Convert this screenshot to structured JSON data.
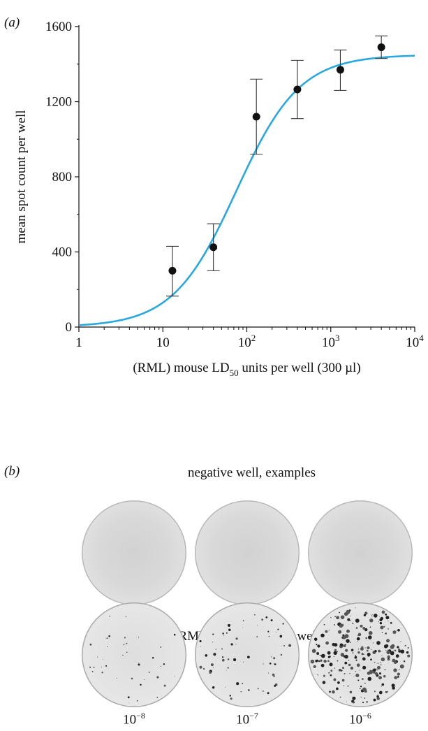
{
  "panel_a_label": "(a)",
  "panel_b_label": "(b)",
  "chart_data": {
    "type": "scatter",
    "xscale": "log",
    "xlim": [
      1,
      10000
    ],
    "ylim": [
      0,
      1600
    ],
    "xlabel": "(RML) mouse LD50 units per well (300 µl)",
    "ylabel": "mean spot count per well",
    "xticks": [
      1,
      10,
      100,
      1000,
      10000
    ],
    "xtick_labels": [
      "1",
      "10",
      "10^2",
      "10^3",
      "10^4"
    ],
    "yticks": [
      0,
      400,
      800,
      1200,
      1600
    ],
    "ytick_labels": [
      "0",
      "400",
      "800",
      "1200",
      "1600"
    ],
    "points": [
      {
        "x": 13,
        "y": 300,
        "err_low": 165,
        "err_high": 430
      },
      {
        "x": 40,
        "y": 425,
        "err_low": 300,
        "err_high": 550
      },
      {
        "x": 130,
        "y": 1120,
        "err_low": 920,
        "err_high": 1320
      },
      {
        "x": 400,
        "y": 1265,
        "err_low": 1110,
        "err_high": 1420
      },
      {
        "x": 1300,
        "y": 1370,
        "err_low": 1260,
        "err_high": 1475
      },
      {
        "x": 4000,
        "y": 1490,
        "err_low": 1430,
        "err_high": 1550
      }
    ],
    "fit_curve": {
      "type": "sigmoid",
      "top": 1450,
      "ec50": 75,
      "hill": 1.15,
      "color": "#29a8df"
    },
    "point_color": "#111111",
    "grid": false
  },
  "negative_title": "negative well, examples",
  "dilution_title": "RML—serial dilution wells",
  "dilution_labels": [
    {
      "base": "10",
      "exp": "−8"
    },
    {
      "base": "10",
      "exp": "−7"
    },
    {
      "base": "10",
      "exp": "−6"
    }
  ]
}
